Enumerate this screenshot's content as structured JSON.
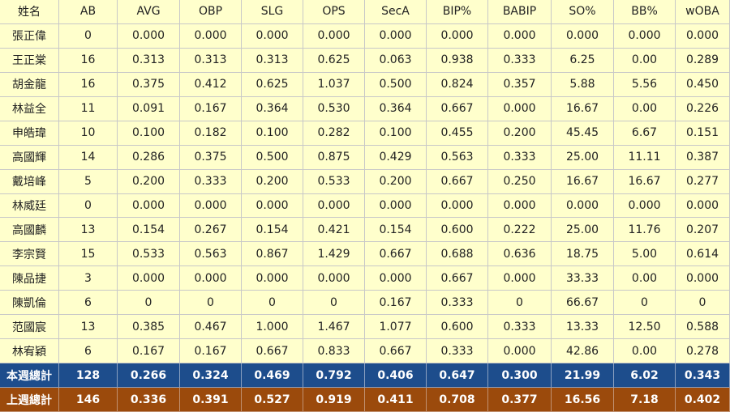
{
  "table": {
    "header": [
      "姓名",
      "AB",
      "AVG",
      "OBP",
      "SLG",
      "OPS",
      "SecA",
      "BIP%",
      "BABIP",
      "SO%",
      "BB%",
      "wOBA"
    ],
    "rows": [
      [
        "張正偉",
        "0",
        "0.000",
        "0.000",
        "0.000",
        "0.000",
        "0.000",
        "0.000",
        "0.000",
        "0.000",
        "0.000",
        "0.000"
      ],
      [
        "王正棠",
        "16",
        "0.313",
        "0.313",
        "0.313",
        "0.625",
        "0.063",
        "0.938",
        "0.333",
        "6.25",
        "0.00",
        "0.289"
      ],
      [
        "胡金龍",
        "16",
        "0.375",
        "0.412",
        "0.625",
        "1.037",
        "0.500",
        "0.824",
        "0.357",
        "5.88",
        "5.56",
        "0.450"
      ],
      [
        "林益全",
        "11",
        "0.091",
        "0.167",
        "0.364",
        "0.530",
        "0.364",
        "0.667",
        "0.000",
        "16.67",
        "0.00",
        "0.226"
      ],
      [
        "申皓瑋",
        "10",
        "0.100",
        "0.182",
        "0.100",
        "0.282",
        "0.100",
        "0.455",
        "0.200",
        "45.45",
        "6.67",
        "0.151"
      ],
      [
        "高國輝",
        "14",
        "0.286",
        "0.375",
        "0.500",
        "0.875",
        "0.429",
        "0.563",
        "0.333",
        "25.00",
        "11.11",
        "0.387"
      ],
      [
        "戴培峰",
        "5",
        "0.200",
        "0.333",
        "0.200",
        "0.533",
        "0.200",
        "0.667",
        "0.250",
        "16.67",
        "16.67",
        "0.277"
      ],
      [
        "林威廷",
        "0",
        "0.000",
        "0.000",
        "0.000",
        "0.000",
        "0.000",
        "0.000",
        "0.000",
        "0.000",
        "0.000",
        "0.000"
      ],
      [
        "高國麟",
        "13",
        "0.154",
        "0.267",
        "0.154",
        "0.421",
        "0.154",
        "0.600",
        "0.222",
        "25.00",
        "11.76",
        "0.207"
      ],
      [
        "李宗賢",
        "15",
        "0.533",
        "0.563",
        "0.867",
        "1.429",
        "0.667",
        "0.688",
        "0.636",
        "18.75",
        "5.00",
        "0.614"
      ],
      [
        "陳品捷",
        "3",
        "0.000",
        "0.000",
        "0.000",
        "0.000",
        "0.000",
        "0.667",
        "0.000",
        "33.33",
        "0.00",
        "0.000"
      ],
      [
        "陳凱倫",
        "6",
        "0",
        "0",
        "0",
        "0",
        "0.167",
        "0.333",
        "0",
        "66.67",
        "0",
        "0"
      ],
      [
        "范國宸",
        "13",
        "0.385",
        "0.467",
        "1.000",
        "1.467",
        "1.077",
        "0.600",
        "0.333",
        "13.33",
        "12.50",
        "0.588"
      ],
      [
        "林宥穎",
        "6",
        "0.167",
        "0.167",
        "0.667",
        "0.833",
        "0.667",
        "0.333",
        "0.000",
        "42.86",
        "0.00",
        "0.278"
      ]
    ],
    "totals": [
      [
        "本週總計",
        "128",
        "0.266",
        "0.324",
        "0.469",
        "0.792",
        "0.406",
        "0.647",
        "0.300",
        "21.99",
        "6.02",
        "0.343"
      ],
      [
        "上週總計",
        "146",
        "0.336",
        "0.391",
        "0.527",
        "0.919",
        "0.411",
        "0.708",
        "0.377",
        "16.56",
        "7.18",
        "0.402"
      ]
    ]
  }
}
